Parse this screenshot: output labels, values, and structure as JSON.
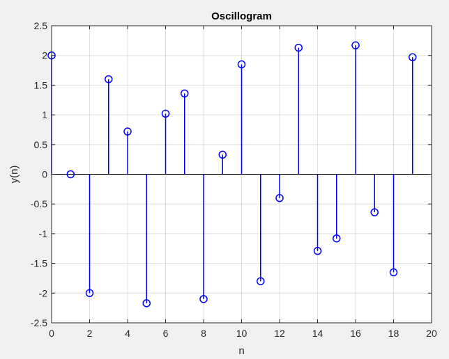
{
  "chart_data": {
    "type": "stem",
    "title": "Oscillogram",
    "xlabel": "n",
    "ylabel": "y(n)",
    "xlim": [
      0,
      20
    ],
    "ylim": [
      -2.5,
      2.5
    ],
    "xticks": [
      "0",
      "2",
      "4",
      "6",
      "8",
      "10",
      "12",
      "14",
      "16",
      "18",
      "20"
    ],
    "yticks": [
      "2.5",
      "2",
      "1.5",
      "1",
      "0.5",
      "0",
      "-0.5",
      "-1",
      "-1.5",
      "-2",
      "-2.5"
    ],
    "grid": true,
    "series": [
      {
        "color": "#0000ff",
        "marker": "circle-open",
        "x": [
          0,
          1,
          2,
          3,
          4,
          5,
          6,
          7,
          8,
          9,
          10,
          11,
          12,
          13,
          14,
          15,
          16,
          17,
          18,
          19
        ],
        "y": [
          2.0,
          0.0,
          -2.0,
          1.6,
          0.72,
          -2.17,
          1.02,
          1.36,
          -2.1,
          0.33,
          1.85,
          -1.8,
          -0.4,
          2.13,
          -1.29,
          -1.08,
          2.17,
          -0.64,
          -1.65,
          1.97
        ]
      }
    ]
  }
}
